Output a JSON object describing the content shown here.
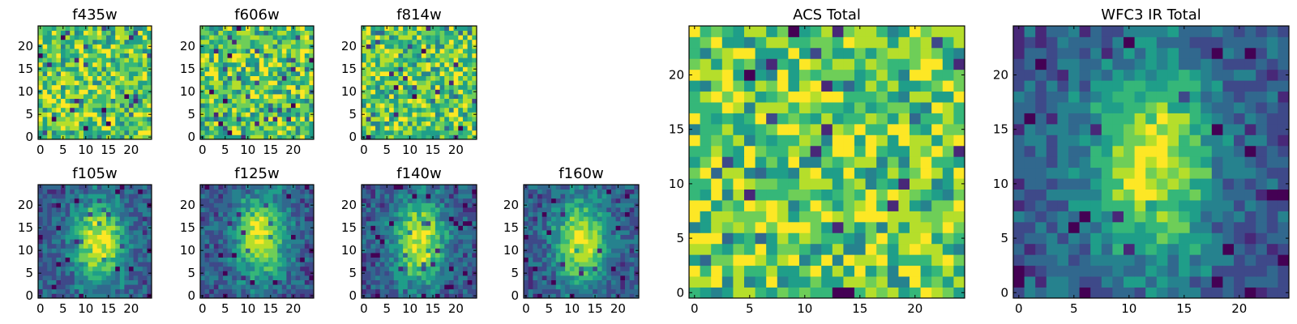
{
  "figure": {
    "description_free": true
  },
  "colormap": [
    "#440154",
    "#482878",
    "#3e4989",
    "#31688e",
    "#26828e",
    "#1f9e89",
    "#35b779",
    "#6ece58",
    "#b5de2b",
    "#fde725"
  ],
  "chart_data": [
    {
      "type": "heatmap",
      "title": "f435w",
      "grid": [
        25,
        25
      ],
      "xlim": [
        0,
        24
      ],
      "ylim": [
        0,
        24
      ],
      "xticks": [
        "0",
        "5",
        "10",
        "15",
        "20"
      ],
      "yticks": [
        "0",
        "5",
        "10",
        "15",
        "20"
      ],
      "pattern": "noise",
      "center": [
        12,
        12
      ],
      "seed": 11
    },
    {
      "type": "heatmap",
      "title": "f606w",
      "grid": [
        25,
        25
      ],
      "xlim": [
        0,
        24
      ],
      "ylim": [
        0,
        24
      ],
      "xticks": [
        "0",
        "5",
        "10",
        "15",
        "20"
      ],
      "yticks": [
        "0",
        "5",
        "10",
        "15",
        "20"
      ],
      "pattern": "noise",
      "center": [
        12,
        12
      ],
      "seed": 23
    },
    {
      "type": "heatmap",
      "title": "f814w",
      "grid": [
        25,
        25
      ],
      "xlim": [
        0,
        24
      ],
      "ylim": [
        0,
        24
      ],
      "xticks": [
        "0",
        "5",
        "10",
        "15",
        "20"
      ],
      "yticks": [
        "0",
        "5",
        "10",
        "15",
        "20"
      ],
      "pattern": "noise",
      "center": [
        12,
        12
      ],
      "seed": 37
    },
    {
      "type": "heatmap",
      "title": "f105w",
      "grid": [
        25,
        25
      ],
      "xlim": [
        0,
        24
      ],
      "ylim": [
        0,
        24
      ],
      "xticks": [
        "0",
        "5",
        "10",
        "15",
        "20"
      ],
      "yticks": [
        "0",
        "5",
        "10",
        "15",
        "20"
      ],
      "pattern": "blob",
      "center": [
        13,
        12
      ],
      "seed": 41
    },
    {
      "type": "heatmap",
      "title": "f125w",
      "grid": [
        25,
        25
      ],
      "xlim": [
        0,
        24
      ],
      "ylim": [
        0,
        24
      ],
      "xticks": [
        "0",
        "5",
        "10",
        "15",
        "20"
      ],
      "yticks": [
        "0",
        "5",
        "10",
        "15",
        "20"
      ],
      "pattern": "blob",
      "center": [
        13,
        13
      ],
      "seed": 53
    },
    {
      "type": "heatmap",
      "title": "f140w",
      "grid": [
        25,
        25
      ],
      "xlim": [
        0,
        24
      ],
      "ylim": [
        0,
        24
      ],
      "xticks": [
        "0",
        "5",
        "10",
        "15",
        "20"
      ],
      "yticks": [
        "0",
        "5",
        "10",
        "15",
        "20"
      ],
      "pattern": "blob",
      "center": [
        12,
        12
      ],
      "seed": 67
    },
    {
      "type": "heatmap",
      "title": "f160w",
      "grid": [
        25,
        25
      ],
      "xlim": [
        0,
        24
      ],
      "ylim": [
        0,
        24
      ],
      "xticks": [
        "0",
        "5",
        "10",
        "15",
        "20"
      ],
      "yticks": [
        "0",
        "5",
        "10",
        "15",
        "20"
      ],
      "pattern": "blob",
      "center": [
        12,
        12
      ],
      "seed": 79
    },
    {
      "type": "heatmap",
      "title": "ACS Total",
      "grid": [
        25,
        25
      ],
      "xlim": [
        0,
        24
      ],
      "ylim": [
        0,
        24
      ],
      "xticks": [
        "0",
        "5",
        "10",
        "15",
        "20"
      ],
      "yticks": [
        "0",
        "5",
        "10",
        "15",
        "20"
      ],
      "pattern": "noise",
      "center": [
        12,
        12
      ],
      "seed": 97
    },
    {
      "type": "heatmap",
      "title": "WFC3 IR Total",
      "grid": [
        25,
        25
      ],
      "xlim": [
        0,
        24
      ],
      "ylim": [
        0,
        24
      ],
      "xticks": [
        "0",
        "5",
        "10",
        "15",
        "20"
      ],
      "yticks": [
        "0",
        "5",
        "10",
        "15",
        "20"
      ],
      "pattern": "blob",
      "center": [
        12,
        12
      ],
      "seed": 101
    }
  ]
}
